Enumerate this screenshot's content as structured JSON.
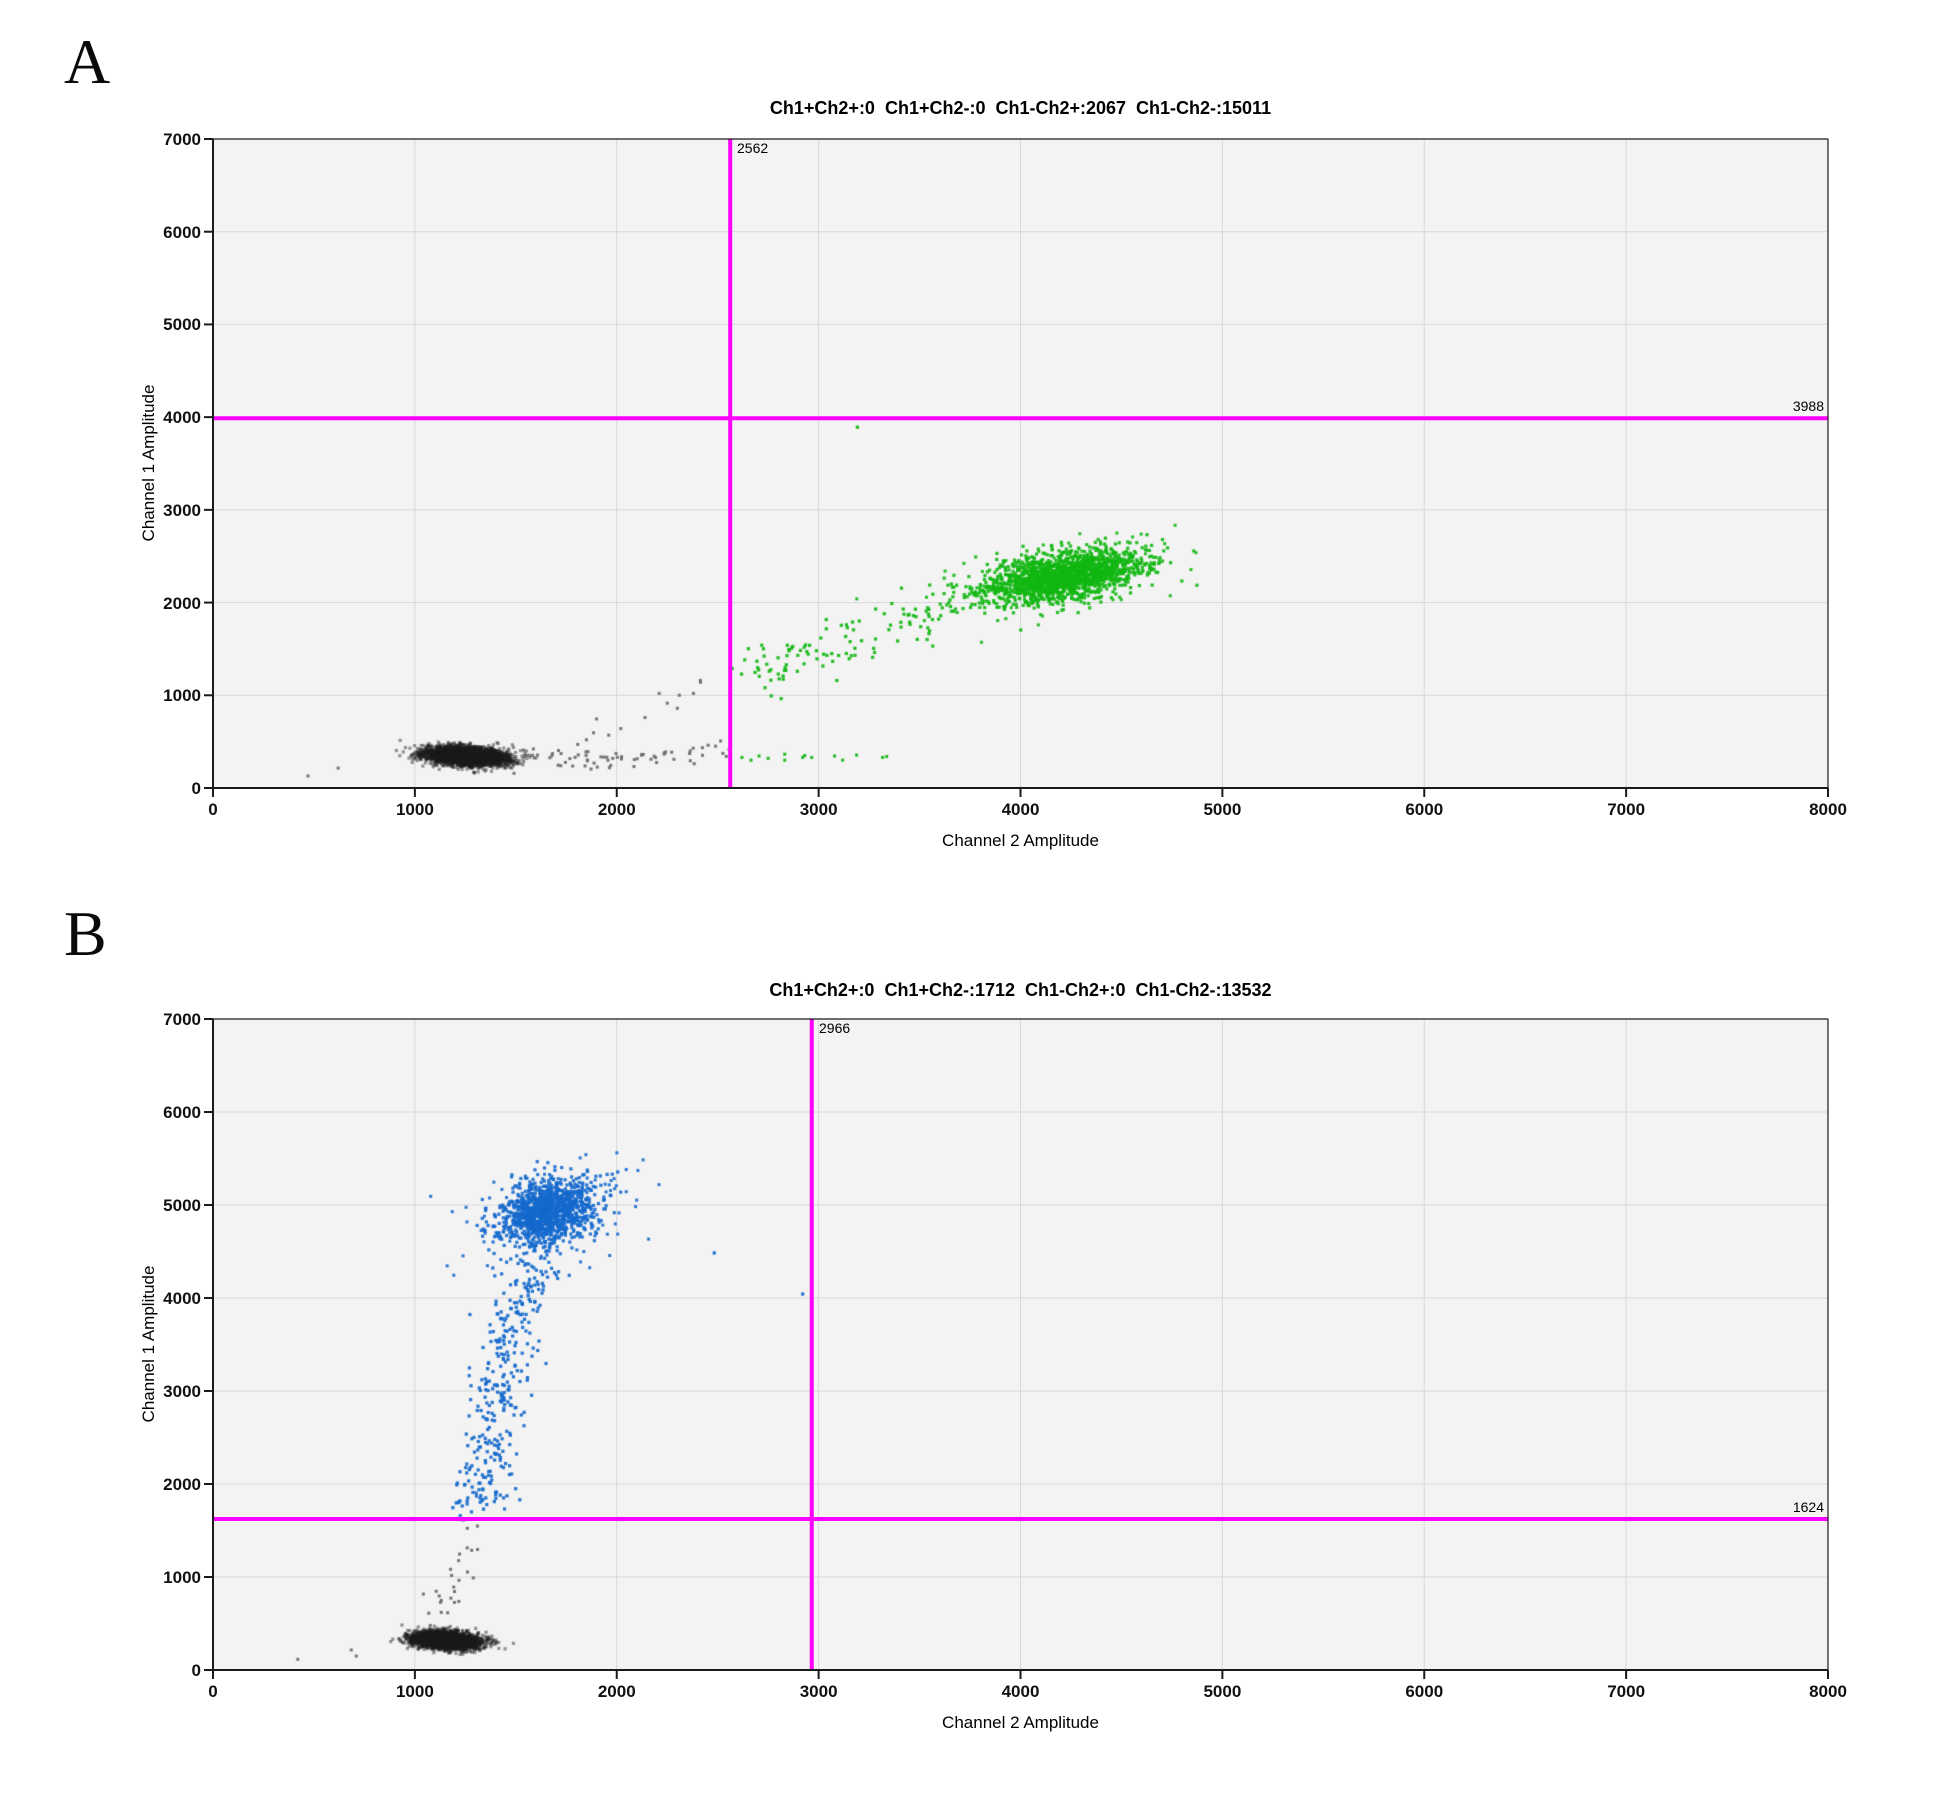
{
  "figure": {
    "description": "Droplet digital PCR 2D amplitude plots, panels A and B"
  },
  "panels": [
    {
      "letter": "A",
      "title": "Ch1+Ch2+:0  Ch1+Ch2-:0  Ch1-Ch2+:2067  Ch1-Ch2-:15011",
      "xlabel": "Channel 2 Amplitude",
      "ylabel": "Channel 1 Amplitude",
      "threshold_x_label": "2562",
      "threshold_y_label": "3988"
    },
    {
      "letter": "B",
      "title": "Ch1+Ch2+:0  Ch1+Ch2-:1712  Ch1-Ch2+:0  Ch1-Ch2-:13532",
      "xlabel": "Channel 2 Amplitude",
      "ylabel": "Channel 1 Amplitude",
      "threshold_x_label": "2966",
      "threshold_y_label": "1624"
    }
  ],
  "chart_data": [
    {
      "type": "scatter",
      "panel": "A",
      "title": "Ch1+Ch2+:0  Ch1+Ch2-:0  Ch1-Ch2+:2067  Ch1-Ch2-:15011",
      "xlabel": "Channel 2 Amplitude",
      "ylabel": "Channel 1 Amplitude",
      "xlim": [
        0,
        8000
      ],
      "ylim": [
        0,
        7000
      ],
      "xstep": 1000,
      "ystep": 1000,
      "grid": true,
      "x_ticks": [
        "0",
        "1000",
        "2000",
        "3000",
        "4000",
        "5000",
        "6000",
        "7000",
        "8000"
      ],
      "y_ticks": [
        "0",
        "1000",
        "2000",
        "3000",
        "4000",
        "5000",
        "6000",
        "7000"
      ],
      "thresholds": {
        "x": 2562,
        "y": 3988,
        "x_label": "2562",
        "y_label": "3988",
        "color": "#ff00ff"
      },
      "quadrant_counts": {
        "Ch1+Ch2+": 0,
        "Ch1+Ch2-": 0,
        "Ch1-Ch2+": 2067,
        "Ch1-Ch2-": 15011
      },
      "colors": {
        "negative": "#1b1b1b",
        "negative_fringe": "#6d6d6d",
        "ch2_positive": "#12b712",
        "crosshair": "#ff00ff"
      },
      "clusters": [
        {
          "id": "negatives-core",
          "type": "gauss",
          "seed": 11,
          "cx": 1255,
          "cy": 345,
          "sx": 100,
          "sy": 50,
          "rho": -0.25,
          "n": 3400,
          "color": "#1b1b1b",
          "alpha": 0.45,
          "size": 3.2
        },
        {
          "id": "negatives-trail",
          "type": "poly",
          "seed": 12,
          "pts": [
            [
              1500,
              330
            ],
            [
              1800,
              300
            ],
            [
              2100,
              310
            ],
            [
              2350,
              380
            ],
            [
              2540,
              420
            ]
          ],
          "jx": 40,
          "jy": 55,
          "n": 70,
          "color": "#6d6d6d",
          "alpha": 0.95,
          "size": 3.0
        },
        {
          "id": "negatives-rising-arc",
          "type": "points",
          "pts": [
            [
              1850,
              520
            ],
            [
              1885,
              595
            ],
            [
              1900,
              745
            ],
            [
              1960,
              570
            ],
            [
              2020,
              640
            ],
            [
              2140,
              760
            ],
            [
              2210,
              1020
            ],
            [
              2250,
              915
            ],
            [
              2300,
              860
            ],
            [
              2310,
              1000
            ],
            [
              2380,
              1020
            ],
            [
              2415,
              1140
            ],
            [
              2414,
              1161
            ]
          ],
          "color": "#6d6d6d",
          "alpha": 0.95,
          "size": 3.0
        },
        {
          "id": "negatives-strays",
          "type": "points",
          "pts": [
            [
              470,
              130
            ],
            [
              620,
              215
            ]
          ],
          "color": "#6d6d6d",
          "alpha": 0.95,
          "size": 3.0
        },
        {
          "id": "ch2pos-tail",
          "type": "poly",
          "seed": 13,
          "pts": [
            [
              2590,
              1260
            ],
            [
              2800,
              1330
            ],
            [
              3000,
              1450
            ],
            [
              3200,
              1620
            ],
            [
              3460,
              1820
            ],
            [
              3720,
              2080
            ]
          ],
          "jx": 70,
          "jy": 140,
          "n": 120,
          "color": "#12b712",
          "alpha": 0.92,
          "size": 3.2
        },
        {
          "id": "ch2pos-core",
          "type": "gauss",
          "seed": 14,
          "cx": 4210,
          "cy": 2280,
          "sx": 200,
          "sy": 140,
          "rho": 0.45,
          "n": 1700,
          "color": "#12b712",
          "alpha": 0.9,
          "size": 3.2
        },
        {
          "id": "ch2pos-halo",
          "type": "gauss",
          "seed": 15,
          "cx": 4230,
          "cy": 2290,
          "sx": 300,
          "sy": 200,
          "rho": 0.45,
          "n": 150,
          "color": "#12b712",
          "alpha": 0.9,
          "size": 3.0
        },
        {
          "id": "ch2pos-low-band",
          "type": "points",
          "pts": [
            [
              2620,
              330
            ],
            [
              2665,
              300
            ],
            [
              2705,
              345
            ],
            [
              2750,
              320
            ],
            [
              2832,
              300
            ],
            [
              2832,
              365
            ],
            [
              2921,
              330
            ],
            [
              2931,
              350
            ],
            [
              2966,
              330
            ],
            [
              3079,
              345
            ],
            [
              3119,
              300
            ],
            [
              3188,
              355
            ],
            [
              3317,
              330
            ],
            [
              3337,
              340
            ]
          ],
          "color": "#12b712",
          "alpha": 0.95,
          "size": 3.0
        },
        {
          "id": "ch2pos-outlier",
          "type": "points",
          "pts": [
            [
              3192,
              3892
            ]
          ],
          "color": "#12b712",
          "alpha": 0.95,
          "size": 3.2
        }
      ]
    },
    {
      "type": "scatter",
      "panel": "B",
      "title": "Ch1+Ch2+:0  Ch1+Ch2-:1712  Ch1-Ch2+:0  Ch1-Ch2-:13532",
      "xlabel": "Channel 2 Amplitude",
      "ylabel": "Channel 1 Amplitude",
      "xlim": [
        0,
        8000
      ],
      "ylim": [
        0,
        7000
      ],
      "xstep": 1000,
      "ystep": 1000,
      "grid": true,
      "x_ticks": [
        "0",
        "1000",
        "2000",
        "3000",
        "4000",
        "5000",
        "6000",
        "7000",
        "8000"
      ],
      "y_ticks": [
        "0",
        "1000",
        "2000",
        "3000",
        "4000",
        "5000",
        "6000",
        "7000"
      ],
      "thresholds": {
        "x": 2966,
        "y": 1624,
        "x_label": "2966",
        "y_label": "1624",
        "color": "#ff00ff"
      },
      "quadrant_counts": {
        "Ch1+Ch2+": 0,
        "Ch1+Ch2-": 1712,
        "Ch1-Ch2+": 0,
        "Ch1-Ch2-": 13532
      },
      "colors": {
        "negative": "#1b1b1b",
        "negative_fringe": "#6d6d6d",
        "ch1_positive": "#1569cd",
        "crosshair": "#ff00ff"
      },
      "clusters": [
        {
          "id": "negatives-core",
          "type": "gauss",
          "seed": 21,
          "cx": 1155,
          "cy": 320,
          "sx": 80,
          "sy": 46,
          "rho": -0.2,
          "n": 3400,
          "color": "#1b1b1b",
          "alpha": 0.45,
          "size": 3.2
        },
        {
          "id": "negatives-strays",
          "type": "points",
          "pts": [
            [
              420,
              115
            ],
            [
              685,
              215
            ],
            [
              710,
              150
            ]
          ],
          "color": "#6d6d6d",
          "alpha": 0.95,
          "size": 3.0
        },
        {
          "id": "negatives-trail-up",
          "type": "poly",
          "seed": 22,
          "pts": [
            [
              1140,
              600
            ],
            [
              1175,
              800
            ],
            [
              1215,
              1000
            ],
            [
              1250,
              1200
            ],
            [
              1285,
              1400
            ],
            [
              1305,
              1560
            ]
          ],
          "jx": 38,
          "jy": 70,
          "n": 26,
          "color": "#6d6d6d",
          "alpha": 0.95,
          "size": 3.0
        },
        {
          "id": "ch1pos-tail",
          "type": "poly",
          "seed": 23,
          "pts": [
            [
              1315,
              1720
            ],
            [
              1340,
              2100
            ],
            [
              1375,
              2600
            ],
            [
              1425,
              3100
            ],
            [
              1470,
              3600
            ],
            [
              1520,
              4100
            ],
            [
              1580,
              4400
            ]
          ],
          "jx": 72,
          "jy": 95,
          "n": 340,
          "color": "#1569cd",
          "alpha": 0.92,
          "size": 3.2
        },
        {
          "id": "ch1pos-core",
          "type": "gauss",
          "seed": 24,
          "cx": 1655,
          "cy": 4920,
          "sx": 115,
          "sy": 175,
          "rho": 0.25,
          "n": 1200,
          "color": "#1569cd",
          "alpha": 0.9,
          "size": 3.2
        },
        {
          "id": "ch1pos-halo",
          "type": "gauss",
          "seed": 25,
          "cx": 1680,
          "cy": 4880,
          "sx": 230,
          "sy": 300,
          "rho": 0.25,
          "n": 130,
          "color": "#1569cd",
          "alpha": 0.9,
          "size": 3.0
        },
        {
          "id": "ch1pos-outliers",
          "type": "points",
          "pts": [
            [
              2483,
              4484
            ],
            [
              2921,
              4043
            ],
            [
              2005,
              5355
            ]
          ],
          "color": "#1569cd",
          "alpha": 0.95,
          "size": 3.2
        }
      ]
    }
  ]
}
